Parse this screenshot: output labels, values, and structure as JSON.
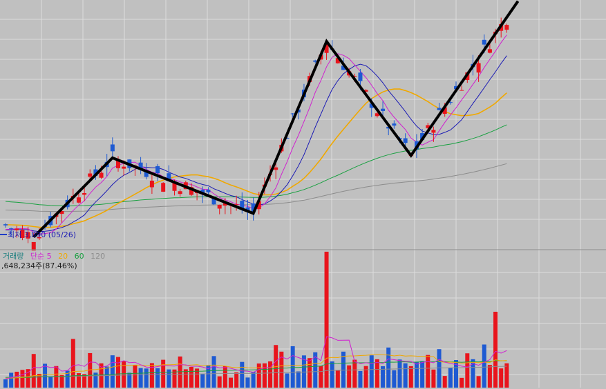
{
  "colors": {
    "background": "#c0c0c0",
    "grid": "#dcdcdc",
    "divider": "#8c8c8c",
    "up": "#e8141c",
    "down": "#1e5ad2",
    "ma5": "#d020d0",
    "ma20": "#f0a800",
    "ma60": "#18a040",
    "ma120": "#8c8c8c",
    "price_ma_short": "#1a1ab4",
    "trend": "#000000",
    "volume_label": "#208080",
    "text": "#202020"
  },
  "price_panel": {
    "low_marker": {
      "text": "최저 3,890 (05/26)",
      "value": 3890,
      "date": "05/26"
    }
  },
  "volume_panel": {
    "legend": [
      {
        "text": "거래량",
        "color": "#208080"
      },
      {
        "text": "단순 5",
        "color": "#d020d0"
      },
      {
        "text": "20",
        "color": "#f0a800"
      },
      {
        "text": "60",
        "color": "#18a040"
      },
      {
        "text": "120",
        "color": "#8c8c8c"
      }
    ],
    "summary": ",648,234주(87.46%)"
  },
  "chart_data": {
    "type": "candlestick",
    "candle_count": 90,
    "price_range": [
      3700,
      7900
    ],
    "low_marker_value": 3890,
    "trend_line": [
      {
        "bar": 5,
        "price": 3890
      },
      {
        "bar": 19,
        "price": 5230
      },
      {
        "bar": 44,
        "price": 4290
      },
      {
        "bar": 57,
        "price": 7200
      },
      {
        "bar": 72,
        "price": 5270
      },
      {
        "bar": 91,
        "price": 7880
      }
    ],
    "volume_range": [
      0,
      3400000
    ],
    "volume_ma_periods": [
      5,
      20,
      60,
      120
    ]
  }
}
